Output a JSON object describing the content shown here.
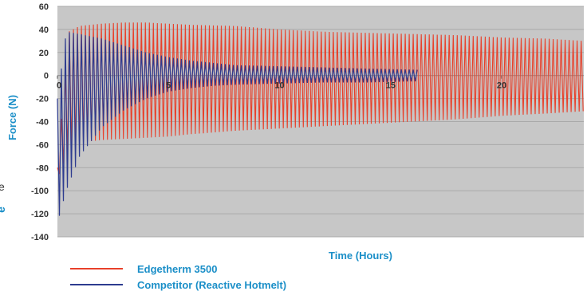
{
  "chart_data": {
    "type": "line",
    "title": "",
    "xlabel": "Time (Hours)",
    "ylabel": "Force (N)",
    "xlim": [
      0,
      23.7
    ],
    "ylim": [
      -140,
      60
    ],
    "x_ticks": [
      0,
      5,
      10,
      15,
      20
    ],
    "x_tick_labels": [
      "0",
      "5",
      "10",
      "15",
      "20"
    ],
    "y_ticks": [
      60,
      40,
      20,
      0,
      -20,
      -40,
      -60,
      -80,
      -100,
      -120,
      -140
    ],
    "y_tick_labels": [
      "60",
      "40",
      "20",
      "0",
      "-20",
      "-40",
      "-60",
      "-80",
      "-100",
      "-120",
      "-140"
    ],
    "grid": true,
    "plot_background": "#c7c7c7",
    "gridline_color": "#a9a9a9",
    "legend_position": "bottom-left",
    "series": [
      {
        "name": "Edgetherm 3500",
        "color": "#e8402a",
        "cycle_hours": 0.18,
        "x_range": [
          0,
          23.7
        ],
        "envelope": {
          "hours": [
            0,
            0.5,
            1,
            2,
            3,
            4,
            5,
            6,
            8,
            10,
            12,
            14,
            16,
            18,
            20,
            22,
            23.7
          ],
          "max": [
            -80,
            38,
            43,
            45,
            46,
            46,
            45,
            44,
            43,
            40,
            38,
            37,
            36,
            35,
            33,
            32,
            30
          ],
          "min": [
            -90,
            -65,
            -58,
            -56,
            -55,
            -54,
            -53,
            -51,
            -48,
            -46,
            -44,
            -42,
            -40,
            -38,
            -35,
            -33,
            -31
          ]
        }
      },
      {
        "name": "Competitor (Reactive Hotmelt)",
        "color": "#2d3b8f",
        "cycle_hours": 0.18,
        "x_range": [
          0,
          16.2
        ],
        "envelope": {
          "hours": [
            0,
            0.4,
            1,
            2,
            3,
            4,
            5,
            6,
            7,
            8,
            10,
            12,
            14,
            16.2
          ],
          "max": [
            -20,
            38,
            36,
            32,
            26,
            20,
            16,
            13,
            11,
            9,
            8,
            7,
            6,
            5
          ],
          "min": [
            -128,
            -100,
            -70,
            -45,
            -30,
            -20,
            -14,
            -11,
            -9,
            -8,
            -7,
            -6,
            -6,
            -5
          ]
        }
      }
    ]
  },
  "clipped_text": {
    "top": "e",
    "bottom": "e"
  }
}
